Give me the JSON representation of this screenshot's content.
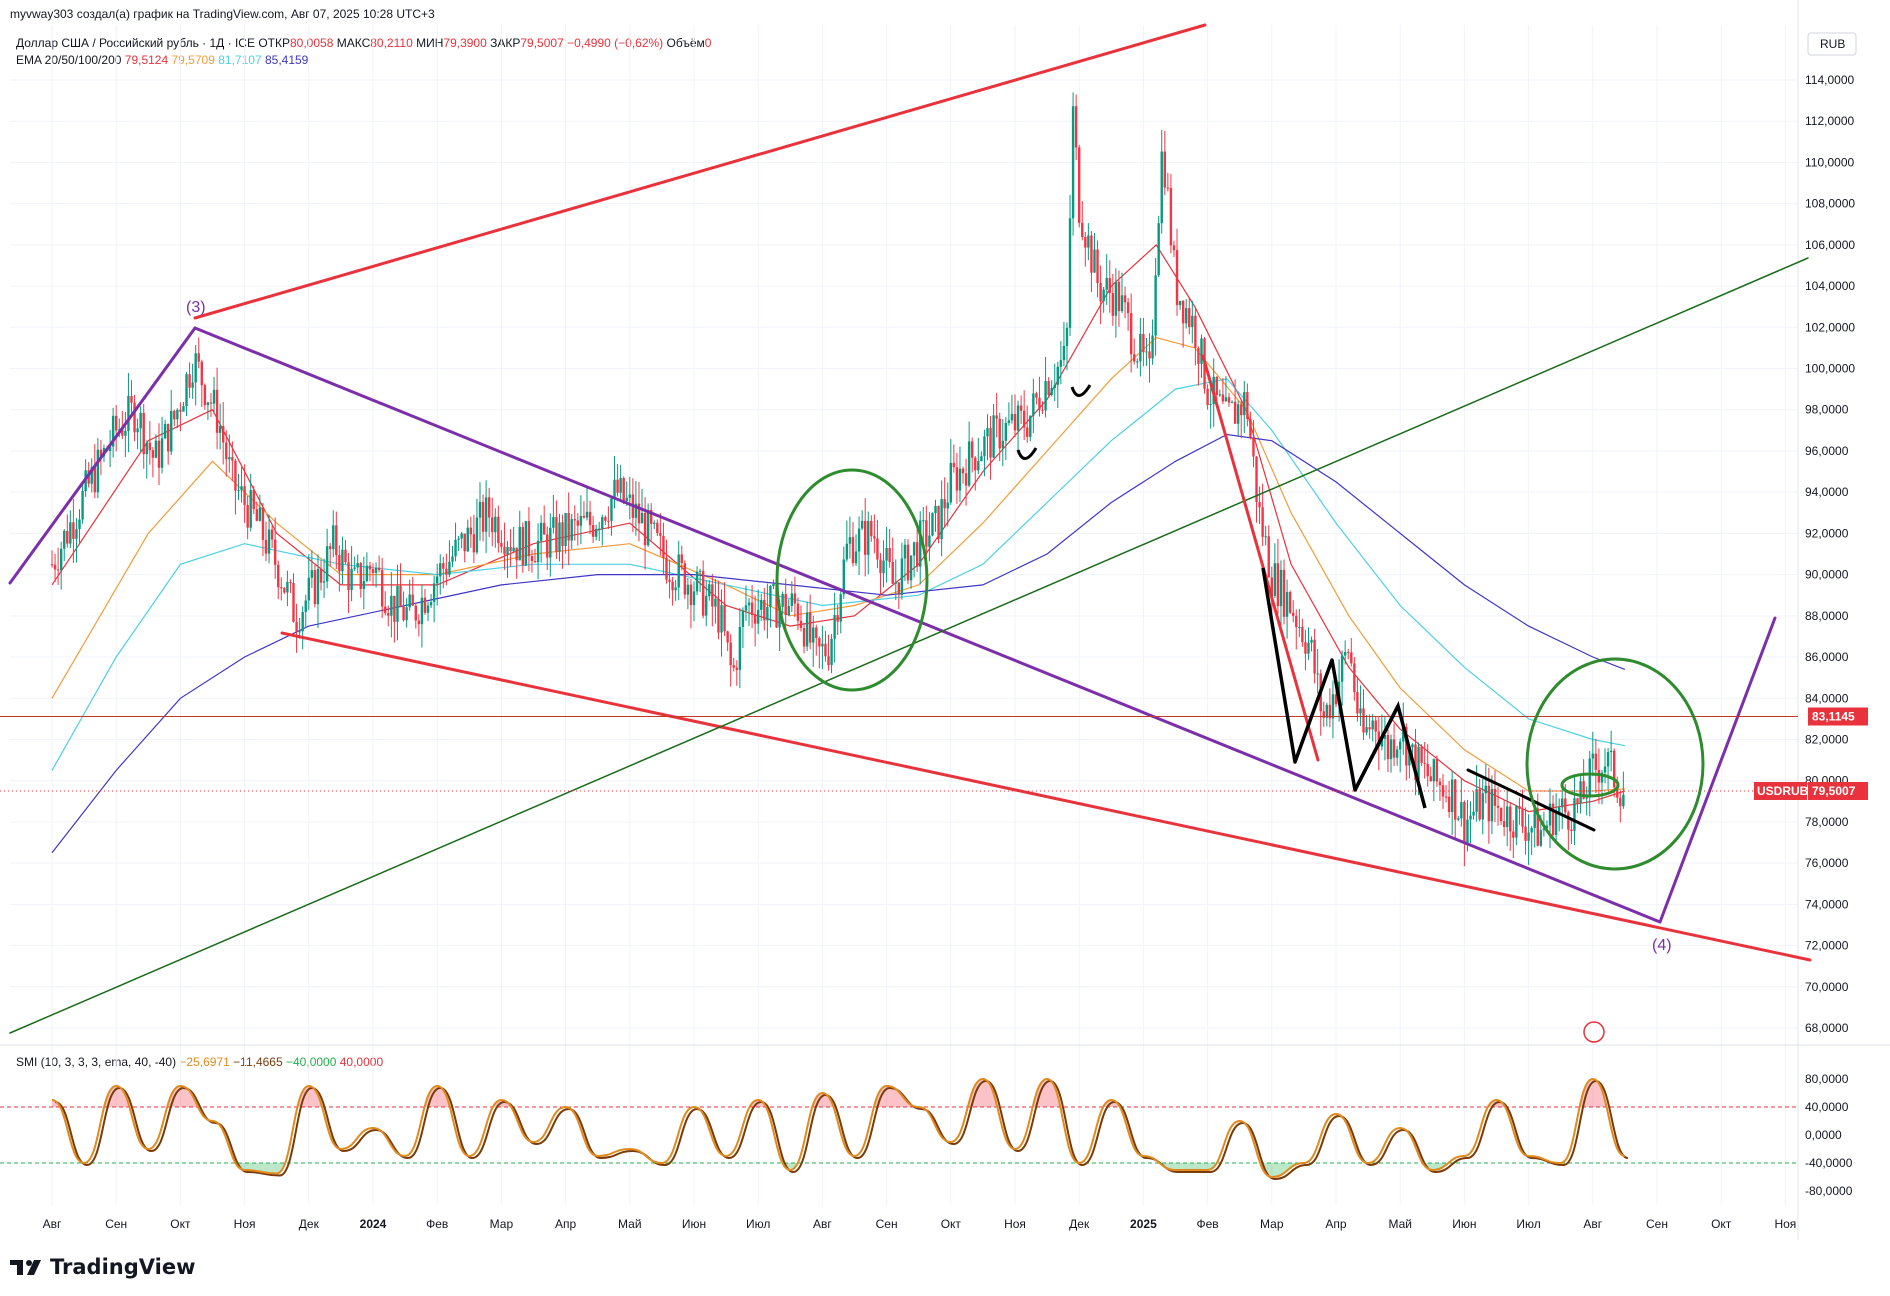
{
  "header": {
    "text": "myvway303 создал(а) график на TradingView.com, Авг 07, 2025 10:28 UTC+3"
  },
  "legend": {
    "symbol": "Доллар США / Российский рубль · 1Д · ICE",
    "open_label": "ОТКР",
    "open_value": "80,0058",
    "high_label": "МАКС",
    "high_value": "80,2110",
    "low_label": "МИН",
    "low_value": "79,3900",
    "close_label": "ЗАКР",
    "close_value": "79,5007",
    "change": "−0,4990 (−0,62%)",
    "volume_label": "Объём",
    "volume_value": "0"
  },
  "ema_legend": {
    "label": "EMA 20/50/100/200",
    "values": [
      {
        "value": "79,5124",
        "color": "#e8323c"
      },
      {
        "value": "79,5709",
        "color": "#f39c3c"
      },
      {
        "value": "81,7107",
        "color": "#4dd0e1"
      },
      {
        "value": "85,4159",
        "color": "#3f36c8"
      }
    ]
  },
  "smi_legend": {
    "label": "SMI (10, 3, 3, 3, ema, 40, -40)",
    "values": [
      {
        "value": "−25,6971",
        "color": "#e08a1e"
      },
      {
        "value": "−11,4665",
        "color": "#7a3b0a"
      },
      {
        "value": "−40,0000",
        "color": "#22b14c"
      },
      {
        "value": "40,0000",
        "color": "#e8323c"
      }
    ]
  },
  "currency": "RUB",
  "price_badges": {
    "level_value": "83,1145",
    "symbol": "USDRUB",
    "last_value": "79,5007"
  },
  "wave_labels": {
    "wave3": "(3)",
    "wave4": "(4)"
  },
  "brand": "TradingView",
  "colors": {
    "up": "#089981",
    "down": "#f23645",
    "ema20": "#e8323c",
    "ema50": "#f39c3c",
    "ema100": "#4dd0e1",
    "ema200": "#3f36c8",
    "wedge_red": "#e8323c",
    "wedge_purple": "#7b2fa8",
    "trend_green": "#1a6b1a",
    "smi_line": "#e08a1e",
    "smi_signal": "#7a3b0a"
  },
  "chart_data": [
    {
      "type": "candlestick",
      "symbol": "USDRUB",
      "timeframe": "1D",
      "ylim": [
        67.0,
        116.0
      ],
      "price_ticks": [
        "114,0000",
        "112,0000",
        "110,0000",
        "108,0000",
        "106,0000",
        "104,0000",
        "102,0000",
        "100,0000",
        "98,0000",
        "96,0000",
        "94,0000",
        "92,0000",
        "90,0000",
        "88,0000",
        "86,0000",
        "84,0000",
        "82,0000",
        "80,0000",
        "78,0000",
        "76,0000",
        "74,0000",
        "72,0000",
        "70,0000",
        "68,0000"
      ],
      "price_tick_values": [
        114,
        112,
        110,
        108,
        106,
        104,
        102,
        100,
        98,
        96,
        94,
        92,
        90,
        88,
        86,
        84,
        82,
        80,
        78,
        76,
        74,
        72,
        70,
        68
      ],
      "time_labels": [
        "Авг",
        "Сен",
        "Окт",
        "Ноя",
        "Дек",
        "2024",
        "Фев",
        "Мар",
        "Апр",
        "Май",
        "Июн",
        "Июл",
        "Авг",
        "Сен",
        "Окт",
        "Ноя",
        "Дек",
        "2025",
        "Фев",
        "Мар",
        "Апр",
        "Май",
        "Июн",
        "Июл",
        "Авг",
        "Сен",
        "Окт",
        "Ноя"
      ],
      "time_label_index": [
        0,
        1,
        2,
        3,
        4,
        5,
        6,
        7,
        8,
        9,
        10,
        11,
        12,
        13,
        14,
        15,
        16,
        17,
        18,
        19,
        20,
        21,
        22,
        23,
        24,
        25,
        26,
        27
      ],
      "close_path": [
        [
          0,
          90.5
        ],
        [
          0.6,
          94.5
        ],
        [
          1.0,
          97.0
        ],
        [
          1.3,
          98.0
        ],
        [
          1.6,
          95.5
        ],
        [
          1.9,
          97.5
        ],
        [
          2.2,
          100.5
        ],
        [
          2.4,
          99.0
        ],
        [
          2.6,
          97.5
        ],
        [
          2.8,
          94.5
        ],
        [
          3.2,
          92.5
        ],
        [
          3.5,
          90.5
        ],
        [
          3.8,
          88.0
        ],
        [
          4.1,
          89.5
        ],
        [
          4.4,
          91.5
        ],
        [
          4.7,
          89.5
        ],
        [
          5.0,
          90.5
        ],
        [
          5.3,
          88.5
        ],
        [
          5.6,
          88.0
        ],
        [
          6.0,
          90.0
        ],
        [
          6.4,
          91.5
        ],
        [
          6.8,
          93.0
        ],
        [
          7.2,
          91.5
        ],
        [
          7.6,
          91.5
        ],
        [
          8.0,
          92.0
        ],
        [
          8.4,
          92.5
        ],
        [
          8.8,
          94.0
        ],
        [
          9.2,
          92.5
        ],
        [
          9.6,
          90.5
        ],
        [
          10.0,
          89.5
        ],
        [
          10.4,
          88.0
        ],
        [
          10.6,
          85.0
        ],
        [
          10.8,
          88.5
        ],
        [
          11.2,
          88.5
        ],
        [
          11.6,
          88.5
        ],
        [
          11.9,
          86.0
        ],
        [
          12.1,
          86.5
        ],
        [
          12.4,
          91.5
        ],
        [
          12.8,
          92.0
        ],
        [
          13.1,
          89.5
        ],
        [
          13.5,
          91.5
        ],
        [
          13.8,
          92.5
        ],
        [
          14.0,
          94.5
        ],
        [
          14.4,
          96.0
        ],
        [
          14.8,
          97.0
        ],
        [
          15.2,
          97.5
        ],
        [
          15.5,
          99.5
        ],
        [
          15.8,
          100.5
        ],
        [
          15.9,
          112.5
        ],
        [
          16.0,
          108.0
        ],
        [
          16.3,
          104.0
        ],
        [
          16.6,
          103.5
        ],
        [
          16.9,
          101.0
        ],
        [
          17.1,
          99.5
        ],
        [
          17.2,
          106.0
        ],
        [
          17.3,
          111.0
        ],
        [
          17.5,
          104.0
        ],
        [
          17.8,
          102.0
        ],
        [
          18.0,
          99.0
        ],
        [
          18.3,
          97.5
        ],
        [
          18.6,
          98.5
        ],
        [
          18.8,
          93.0
        ],
        [
          19.0,
          90.0
        ],
        [
          19.3,
          88.5
        ],
        [
          19.6,
          86.5
        ],
        [
          19.8,
          83.0
        ],
        [
          20.0,
          84.5
        ],
        [
          20.2,
          86.5
        ],
        [
          20.4,
          82.0
        ],
        [
          20.6,
          83.0
        ],
        [
          20.8,
          81.5
        ],
        [
          21.0,
          82.5
        ],
        [
          21.2,
          81.0
        ],
        [
          21.5,
          80.0
        ],
        [
          21.8,
          79.5
        ],
        [
          22.0,
          78.0
        ],
        [
          22.3,
          79.0
        ],
        [
          22.6,
          78.5
        ],
        [
          22.9,
          78.0
        ],
        [
          23.2,
          77.5
        ],
        [
          23.4,
          78.5
        ],
        [
          23.6,
          78.5
        ],
        [
          23.8,
          78.8
        ],
        [
          24.0,
          80.5
        ],
        [
          24.2,
          81.0
        ],
        [
          24.4,
          79.8
        ],
        [
          24.5,
          79.5
        ]
      ],
      "ema20_path": [
        [
          0,
          89.5
        ],
        [
          1.5,
          96.5
        ],
        [
          2.5,
          98.0
        ],
        [
          3.5,
          92.0
        ],
        [
          4.5,
          89.5
        ],
        [
          6,
          89.5
        ],
        [
          7.5,
          91.5
        ],
        [
          9,
          92.5
        ],
        [
          10.5,
          88.5
        ],
        [
          11.5,
          87.5
        ],
        [
          12.5,
          88.0
        ],
        [
          13.5,
          90.5
        ],
        [
          14.5,
          95.0
        ],
        [
          15.5,
          98.5
        ],
        [
          16.5,
          104.0
        ],
        [
          17.2,
          106.0
        ],
        [
          17.8,
          103.0
        ],
        [
          18.6,
          98.0
        ],
        [
          19.3,
          90.5
        ],
        [
          20.2,
          85.5
        ],
        [
          21,
          82.5
        ],
        [
          22,
          80.0
        ],
        [
          23,
          78.5
        ],
        [
          24,
          79.0
        ],
        [
          24.5,
          79.5
        ]
      ],
      "ema50_path": [
        [
          0,
          84.0
        ],
        [
          1.5,
          92.0
        ],
        [
          2.5,
          95.5
        ],
        [
          3.5,
          92.5
        ],
        [
          4.5,
          90.0
        ],
        [
          6,
          90.0
        ],
        [
          7.5,
          91.0
        ],
        [
          9,
          91.5
        ],
        [
          10.5,
          89.5
        ],
        [
          11.5,
          88.0
        ],
        [
          12.5,
          88.5
        ],
        [
          13.5,
          89.5
        ],
        [
          14.5,
          92.5
        ],
        [
          15.5,
          96.0
        ],
        [
          16.5,
          99.5
        ],
        [
          17.2,
          101.5
        ],
        [
          17.8,
          101.0
        ],
        [
          18.6,
          98.0
        ],
        [
          19.3,
          93.0
        ],
        [
          20.2,
          88.0
        ],
        [
          21,
          84.5
        ],
        [
          22,
          81.5
        ],
        [
          23,
          79.5
        ],
        [
          24,
          79.5
        ],
        [
          24.5,
          79.6
        ]
      ],
      "ema100_path": [
        [
          0,
          80.5
        ],
        [
          1.0,
          86.0
        ],
        [
          2.0,
          90.5
        ],
        [
          3.0,
          91.5
        ],
        [
          4.5,
          90.5
        ],
        [
          6,
          90.0
        ],
        [
          7.5,
          90.5
        ],
        [
          9,
          90.5
        ],
        [
          10.5,
          89.5
        ],
        [
          12.0,
          88.5
        ],
        [
          13.5,
          89.0
        ],
        [
          14.5,
          90.5
        ],
        [
          15.5,
          93.5
        ],
        [
          16.5,
          96.5
        ],
        [
          17.5,
          99.0
        ],
        [
          18.3,
          99.5
        ],
        [
          19.0,
          97.0
        ],
        [
          20,
          92.5
        ],
        [
          21,
          88.5
        ],
        [
          22,
          85.5
        ],
        [
          23,
          83.0
        ],
        [
          24,
          82.0
        ],
        [
          24.5,
          81.7
        ]
      ],
      "ema200_path": [
        [
          0,
          76.5
        ],
        [
          1.0,
          80.5
        ],
        [
          2.0,
          84.0
        ],
        [
          3.0,
          86.0
        ],
        [
          4.0,
          87.5
        ],
        [
          5.5,
          88.5
        ],
        [
          7,
          89.5
        ],
        [
          8.5,
          90.0
        ],
        [
          10,
          90.0
        ],
        [
          11.5,
          89.5
        ],
        [
          13,
          89.0
        ],
        [
          14.5,
          89.5
        ],
        [
          15.5,
          91.0
        ],
        [
          16.5,
          93.5
        ],
        [
          17.5,
          95.5
        ],
        [
          18.3,
          96.8
        ],
        [
          19.0,
          96.5
        ],
        [
          20,
          94.5
        ],
        [
          21,
          92.0
        ],
        [
          22,
          89.5
        ],
        [
          23,
          87.5
        ],
        [
          24,
          86.0
        ],
        [
          24.5,
          85.4
        ]
      ],
      "horizontal_level": 83.1145,
      "last_price": 79.5007
    },
    {
      "type": "line",
      "indicator": "SMI",
      "params": "10, 3, 3, 3, ema, 40, -40",
      "ylim": [
        -100,
        100
      ],
      "ticks": [
        "80,0000",
        "40,0000",
        "0,0000",
        "-40,0000",
        "-80,0000"
      ],
      "tick_values": [
        80,
        40,
        0,
        -40,
        -80
      ],
      "overbought": 40,
      "oversold": -40,
      "x": [
        0,
        0.5,
        1.0,
        1.5,
        2.0,
        2.5,
        3.0,
        3.5,
        4.0,
        4.5,
        5.0,
        5.5,
        6.0,
        6.5,
        7.0,
        7.5,
        8.0,
        8.5,
        9.0,
        9.5,
        10.0,
        10.5,
        11.0,
        11.5,
        12.0,
        12.5,
        13.0,
        13.5,
        14.0,
        14.5,
        15.0,
        15.5,
        16.0,
        16.5,
        17.0,
        17.5,
        18.0,
        18.5,
        19.0,
        19.5,
        20.0,
        20.5,
        21.0,
        21.5,
        22.0,
        22.5,
        23.0,
        23.5,
        24.0,
        24.5
      ],
      "values": [
        50,
        -40,
        70,
        -20,
        70,
        20,
        -50,
        -55,
        70,
        -20,
        10,
        -30,
        70,
        -30,
        50,
        -10,
        40,
        -30,
        -20,
        -40,
        40,
        -30,
        50,
        -50,
        60,
        -30,
        70,
        40,
        -10,
        80,
        -20,
        80,
        -40,
        50,
        -30,
        -50,
        -50,
        20,
        -60,
        -40,
        30,
        -40,
        10,
        -50,
        -30,
        50,
        -30,
        -40,
        80,
        -30
      ]
    }
  ]
}
